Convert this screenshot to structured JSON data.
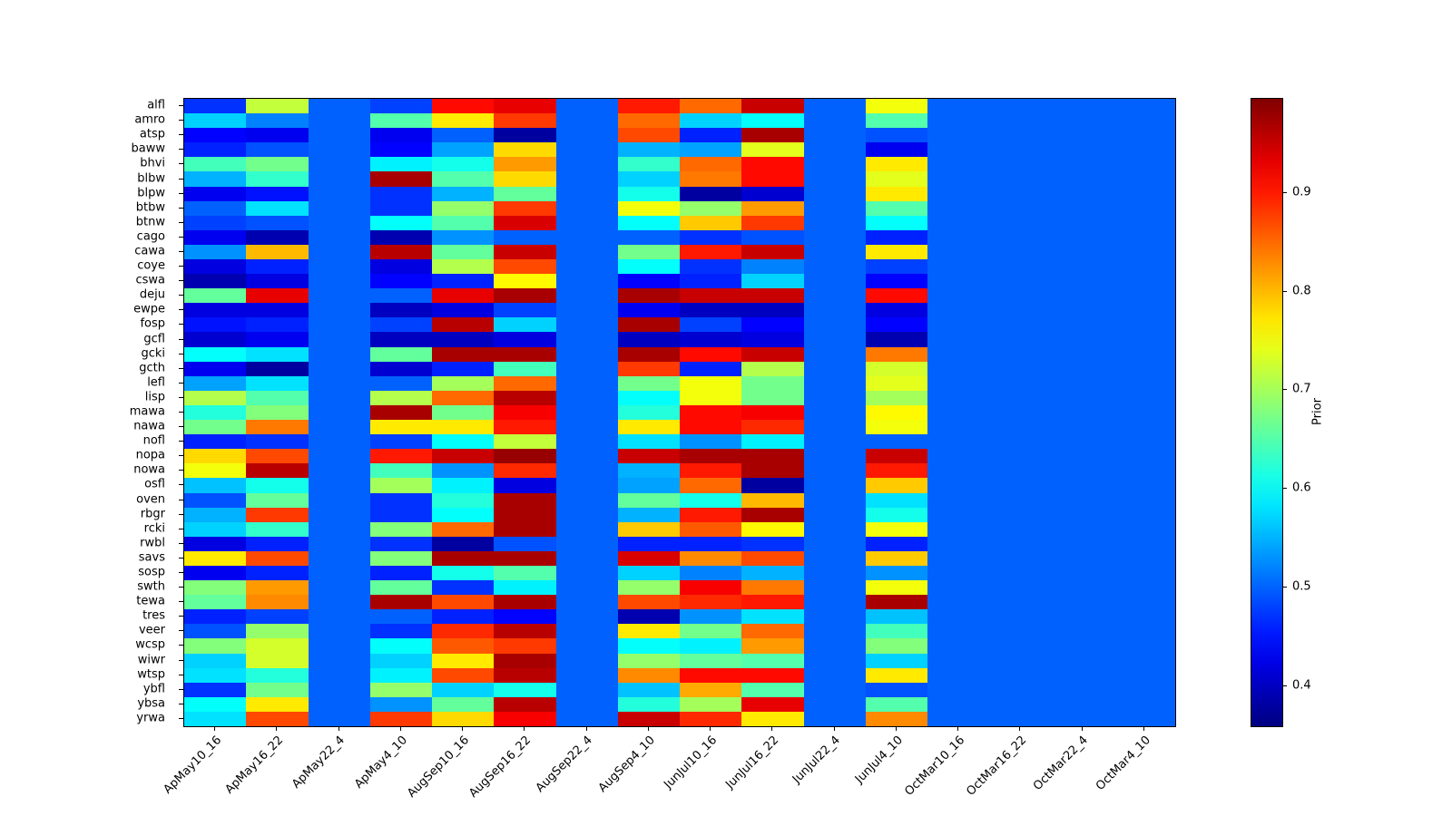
{
  "figure": {
    "background": "#ffffff"
  },
  "chart_data": {
    "type": "heatmap",
    "title": "",
    "colormap": "jet",
    "vmin": 0.36,
    "vmax": 0.995,
    "grid": "off",
    "colorbar": {
      "label": "Prior",
      "ticks": [
        0.4,
        0.5,
        0.6,
        0.7,
        0.8,
        0.9
      ],
      "position": "right"
    },
    "columns": [
      "ApMay10_16",
      "ApMay16_22",
      "ApMay22_4",
      "ApMay4_10",
      "AugSep10_16",
      "AugSep16_22",
      "AugSep22_4",
      "AugSep4_10",
      "JunJul10_16",
      "JunJul16_22",
      "JunJul22_4",
      "JunJul4_10",
      "OctMar10_16",
      "OctMar16_22",
      "OctMar22_4",
      "OctMar4_10"
    ],
    "rows": [
      "alfl",
      "amro",
      "atsp",
      "baww",
      "bhvi",
      "blbw",
      "blpw",
      "btbw",
      "btnw",
      "cago",
      "cawa",
      "coye",
      "cswa",
      "deju",
      "ewpe",
      "fosp",
      "gcfl",
      "gcki",
      "gcth",
      "lefl",
      "lisp",
      "mawa",
      "nawa",
      "nofl",
      "nopa",
      "nowa",
      "osfl",
      "oven",
      "rbgr",
      "rcki",
      "rwbl",
      "savs",
      "sosp",
      "swth",
      "tewa",
      "tres",
      "veer",
      "wcsp",
      "wiwr",
      "wtsp",
      "ybfl",
      "ybsa",
      "yrwa"
    ],
    "values": [
      [
        0.47,
        0.72,
        0.5,
        0.48,
        0.91,
        0.93,
        0.5,
        0.9,
        0.85,
        0.95,
        0.5,
        0.75,
        0.5,
        0.5,
        0.5,
        0.5
      ],
      [
        0.57,
        0.52,
        0.5,
        0.65,
        0.77,
        0.88,
        0.5,
        0.85,
        0.57,
        0.6,
        0.5,
        0.65,
        0.5,
        0.5,
        0.5,
        0.5
      ],
      [
        0.44,
        0.43,
        0.5,
        0.43,
        0.5,
        0.38,
        0.5,
        0.87,
        0.46,
        0.97,
        0.5,
        0.49,
        0.5,
        0.5,
        0.5,
        0.5
      ],
      [
        0.46,
        0.49,
        0.5,
        0.44,
        0.54,
        0.78,
        0.5,
        0.55,
        0.54,
        0.74,
        0.5,
        0.43,
        0.5,
        0.5,
        0.5,
        0.5
      ],
      [
        0.64,
        0.67,
        0.5,
        0.59,
        0.61,
        0.82,
        0.5,
        0.63,
        0.85,
        0.91,
        0.5,
        0.77,
        0.5,
        0.5,
        0.5,
        0.5
      ],
      [
        0.55,
        0.63,
        0.5,
        0.97,
        0.65,
        0.78,
        0.5,
        0.57,
        0.84,
        0.91,
        0.5,
        0.74,
        0.5,
        0.5,
        0.5,
        0.5
      ],
      [
        0.43,
        0.45,
        0.5,
        0.47,
        0.55,
        0.66,
        0.5,
        0.61,
        0.38,
        0.41,
        0.5,
        0.77,
        0.5,
        0.5,
        0.5,
        0.5
      ],
      [
        0.5,
        0.58,
        0.5,
        0.47,
        0.69,
        0.88,
        0.5,
        0.75,
        0.69,
        0.82,
        0.5,
        0.65,
        0.5,
        0.5,
        0.5,
        0.5
      ],
      [
        0.48,
        0.49,
        0.5,
        0.6,
        0.65,
        0.94,
        0.5,
        0.6,
        0.79,
        0.88,
        0.5,
        0.6,
        0.5,
        0.5,
        0.5,
        0.5
      ],
      [
        0.43,
        0.39,
        0.5,
        0.39,
        0.53,
        0.5,
        0.5,
        0.5,
        0.47,
        0.49,
        0.5,
        0.46,
        0.5,
        0.5,
        0.5,
        0.5
      ],
      [
        0.53,
        0.8,
        0.5,
        0.96,
        0.66,
        0.95,
        0.5,
        0.67,
        0.9,
        0.95,
        0.5,
        0.77,
        0.5,
        0.5,
        0.5,
        0.5
      ],
      [
        0.42,
        0.46,
        0.5,
        0.42,
        0.71,
        0.87,
        0.5,
        0.6,
        0.47,
        0.52,
        0.5,
        0.48,
        0.5,
        0.5,
        0.5,
        0.5
      ],
      [
        0.39,
        0.42,
        0.5,
        0.44,
        0.46,
        0.76,
        0.5,
        0.44,
        0.46,
        0.57,
        0.5,
        0.44,
        0.5,
        0.5,
        0.5,
        0.5
      ],
      [
        0.66,
        0.93,
        0.5,
        0.5,
        0.93,
        0.97,
        0.5,
        0.97,
        0.95,
        0.95,
        0.5,
        0.91,
        0.5,
        0.5,
        0.5,
        0.5
      ],
      [
        0.42,
        0.42,
        0.5,
        0.4,
        0.42,
        0.48,
        0.5,
        0.43,
        0.4,
        0.4,
        0.5,
        0.42,
        0.5,
        0.5,
        0.5,
        0.5
      ],
      [
        0.45,
        0.46,
        0.5,
        0.48,
        0.96,
        0.57,
        0.5,
        0.97,
        0.48,
        0.44,
        0.5,
        0.44,
        0.5,
        0.5,
        0.5,
        0.5
      ],
      [
        0.41,
        0.43,
        0.5,
        0.4,
        0.4,
        0.42,
        0.5,
        0.4,
        0.41,
        0.42,
        0.5,
        0.39,
        0.5,
        0.5,
        0.5,
        0.5
      ],
      [
        0.6,
        0.58,
        0.5,
        0.66,
        0.97,
        0.97,
        0.5,
        0.97,
        0.91,
        0.95,
        0.5,
        0.84,
        0.5,
        0.5,
        0.5,
        0.5
      ],
      [
        0.43,
        0.38,
        0.5,
        0.41,
        0.46,
        0.64,
        0.5,
        0.88,
        0.46,
        0.71,
        0.5,
        0.73,
        0.5,
        0.5,
        0.5,
        0.5
      ],
      [
        0.54,
        0.58,
        0.5,
        0.5,
        0.7,
        0.85,
        0.5,
        0.67,
        0.75,
        0.67,
        0.5,
        0.74,
        0.5,
        0.5,
        0.5,
        0.5
      ],
      [
        0.71,
        0.65,
        0.5,
        0.71,
        0.85,
        0.96,
        0.5,
        0.6,
        0.75,
        0.67,
        0.5,
        0.7,
        0.5,
        0.5,
        0.5,
        0.5
      ],
      [
        0.62,
        0.68,
        0.5,
        0.97,
        0.67,
        0.92,
        0.5,
        0.62,
        0.91,
        0.92,
        0.5,
        0.76,
        0.5,
        0.5,
        0.5,
        0.5
      ],
      [
        0.67,
        0.84,
        0.5,
        0.77,
        0.77,
        0.9,
        0.5,
        0.77,
        0.91,
        0.89,
        0.5,
        0.75,
        0.5,
        0.5,
        0.5,
        0.5
      ],
      [
        0.46,
        0.47,
        0.5,
        0.48,
        0.6,
        0.72,
        0.5,
        0.58,
        0.53,
        0.59,
        0.5,
        0.5,
        0.5,
        0.5,
        0.5,
        0.5
      ],
      [
        0.78,
        0.87,
        0.5,
        0.9,
        0.95,
        0.98,
        0.5,
        0.95,
        0.97,
        0.97,
        0.5,
        0.95,
        0.5,
        0.5,
        0.5,
        0.5
      ],
      [
        0.75,
        0.96,
        0.5,
        0.64,
        0.53,
        0.89,
        0.5,
        0.55,
        0.9,
        0.97,
        0.5,
        0.9,
        0.5,
        0.5,
        0.5,
        0.5
      ],
      [
        0.56,
        0.61,
        0.5,
        0.7,
        0.59,
        0.42,
        0.5,
        0.54,
        0.85,
        0.38,
        0.5,
        0.79,
        0.5,
        0.5,
        0.5,
        0.5
      ],
      [
        0.49,
        0.66,
        0.5,
        0.47,
        0.62,
        0.97,
        0.5,
        0.66,
        0.61,
        0.8,
        0.5,
        0.58,
        0.5,
        0.5,
        0.5,
        0.5
      ],
      [
        0.55,
        0.88,
        0.5,
        0.47,
        0.6,
        0.97,
        0.5,
        0.55,
        0.9,
        0.97,
        0.5,
        0.61,
        0.5,
        0.5,
        0.5,
        0.5
      ],
      [
        0.57,
        0.63,
        0.5,
        0.68,
        0.85,
        0.97,
        0.5,
        0.79,
        0.86,
        0.76,
        0.5,
        0.75,
        0.5,
        0.5,
        0.5,
        0.5
      ],
      [
        0.42,
        0.46,
        0.5,
        0.47,
        0.38,
        0.49,
        0.5,
        0.46,
        0.46,
        0.47,
        0.5,
        0.46,
        0.5,
        0.5,
        0.5,
        0.5
      ],
      [
        0.77,
        0.87,
        0.5,
        0.68,
        0.97,
        0.97,
        0.5,
        0.94,
        0.83,
        0.87,
        0.5,
        0.79,
        0.5,
        0.5,
        0.5,
        0.5
      ],
      [
        0.43,
        0.46,
        0.5,
        0.46,
        0.61,
        0.65,
        0.5,
        0.57,
        0.52,
        0.55,
        0.5,
        0.53,
        0.5,
        0.5,
        0.5,
        0.5
      ],
      [
        0.68,
        0.82,
        0.5,
        0.66,
        0.47,
        0.59,
        0.5,
        0.69,
        0.92,
        0.84,
        0.5,
        0.75,
        0.5,
        0.5,
        0.5,
        0.5
      ],
      [
        0.66,
        0.83,
        0.5,
        0.97,
        0.87,
        0.97,
        0.5,
        0.87,
        0.89,
        0.9,
        0.5,
        0.97,
        0.5,
        0.5,
        0.5,
        0.5
      ],
      [
        0.46,
        0.48,
        0.5,
        0.5,
        0.46,
        0.44,
        0.5,
        0.39,
        0.53,
        0.58,
        0.5,
        0.56,
        0.5,
        0.5,
        0.5,
        0.5
      ],
      [
        0.49,
        0.69,
        0.5,
        0.47,
        0.89,
        0.96,
        0.5,
        0.77,
        0.67,
        0.85,
        0.5,
        0.64,
        0.5,
        0.5,
        0.5,
        0.5
      ],
      [
        0.68,
        0.73,
        0.5,
        0.6,
        0.86,
        0.88,
        0.5,
        0.6,
        0.59,
        0.82,
        0.5,
        0.68,
        0.5,
        0.5,
        0.5,
        0.5
      ],
      [
        0.57,
        0.73,
        0.5,
        0.57,
        0.77,
        0.97,
        0.5,
        0.69,
        0.66,
        0.65,
        0.5,
        0.57,
        0.5,
        0.5,
        0.5,
        0.5
      ],
      [
        0.58,
        0.62,
        0.5,
        0.59,
        0.87,
        0.96,
        0.5,
        0.83,
        0.91,
        0.91,
        0.5,
        0.77,
        0.5,
        0.5,
        0.5,
        0.5
      ],
      [
        0.47,
        0.67,
        0.5,
        0.69,
        0.57,
        0.61,
        0.5,
        0.56,
        0.81,
        0.65,
        0.5,
        0.49,
        0.5,
        0.5,
        0.5,
        0.5
      ],
      [
        0.6,
        0.77,
        0.5,
        0.53,
        0.66,
        0.96,
        0.5,
        0.62,
        0.7,
        0.93,
        0.5,
        0.65,
        0.5,
        0.5,
        0.5,
        0.5
      ],
      [
        0.58,
        0.87,
        0.5,
        0.88,
        0.78,
        0.92,
        0.5,
        0.95,
        0.89,
        0.77,
        0.5,
        0.83,
        0.5,
        0.5,
        0.5,
        0.5
      ]
    ]
  }
}
